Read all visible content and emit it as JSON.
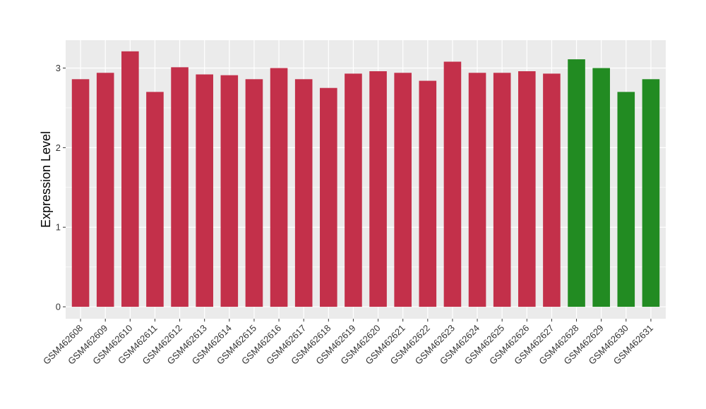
{
  "chart_data": {
    "type": "bar",
    "title": "",
    "xlabel": "",
    "ylabel": "Expression Level",
    "ylim": [
      -0.15,
      3.35
    ],
    "yticks": [
      0,
      1,
      2,
      3
    ],
    "grid": true,
    "panel_background": "#EBEBEB",
    "grid_color": "#FFFFFF",
    "categories": [
      "GSM462608",
      "GSM462609",
      "GSM462610",
      "GSM462611",
      "GSM462612",
      "GSM462613",
      "GSM462614",
      "GSM462615",
      "GSM462616",
      "GSM462617",
      "GSM462618",
      "GSM462619",
      "GSM462620",
      "GSM462621",
      "GSM462622",
      "GSM462623",
      "GSM462624",
      "GSM462625",
      "GSM462626",
      "GSM462627",
      "GSM462628",
      "GSM462629",
      "GSM462630",
      "GSM462631"
    ],
    "values": [
      2.86,
      2.94,
      3.21,
      2.7,
      3.01,
      2.92,
      2.91,
      2.86,
      3.0,
      2.86,
      2.75,
      2.93,
      2.96,
      2.94,
      2.84,
      3.08,
      2.94,
      2.94,
      2.96,
      2.93,
      3.11,
      3.0,
      2.7,
      2.86
    ],
    "bar_colors": [
      "#C3304A",
      "#C3304A",
      "#C3304A",
      "#C3304A",
      "#C3304A",
      "#C3304A",
      "#C3304A",
      "#C3304A",
      "#C3304A",
      "#C3304A",
      "#C3304A",
      "#C3304A",
      "#C3304A",
      "#C3304A",
      "#C3304A",
      "#C3304A",
      "#C3304A",
      "#C3304A",
      "#C3304A",
      "#C3304A",
      "#228B22",
      "#228B22",
      "#228B22",
      "#228B22"
    ]
  }
}
